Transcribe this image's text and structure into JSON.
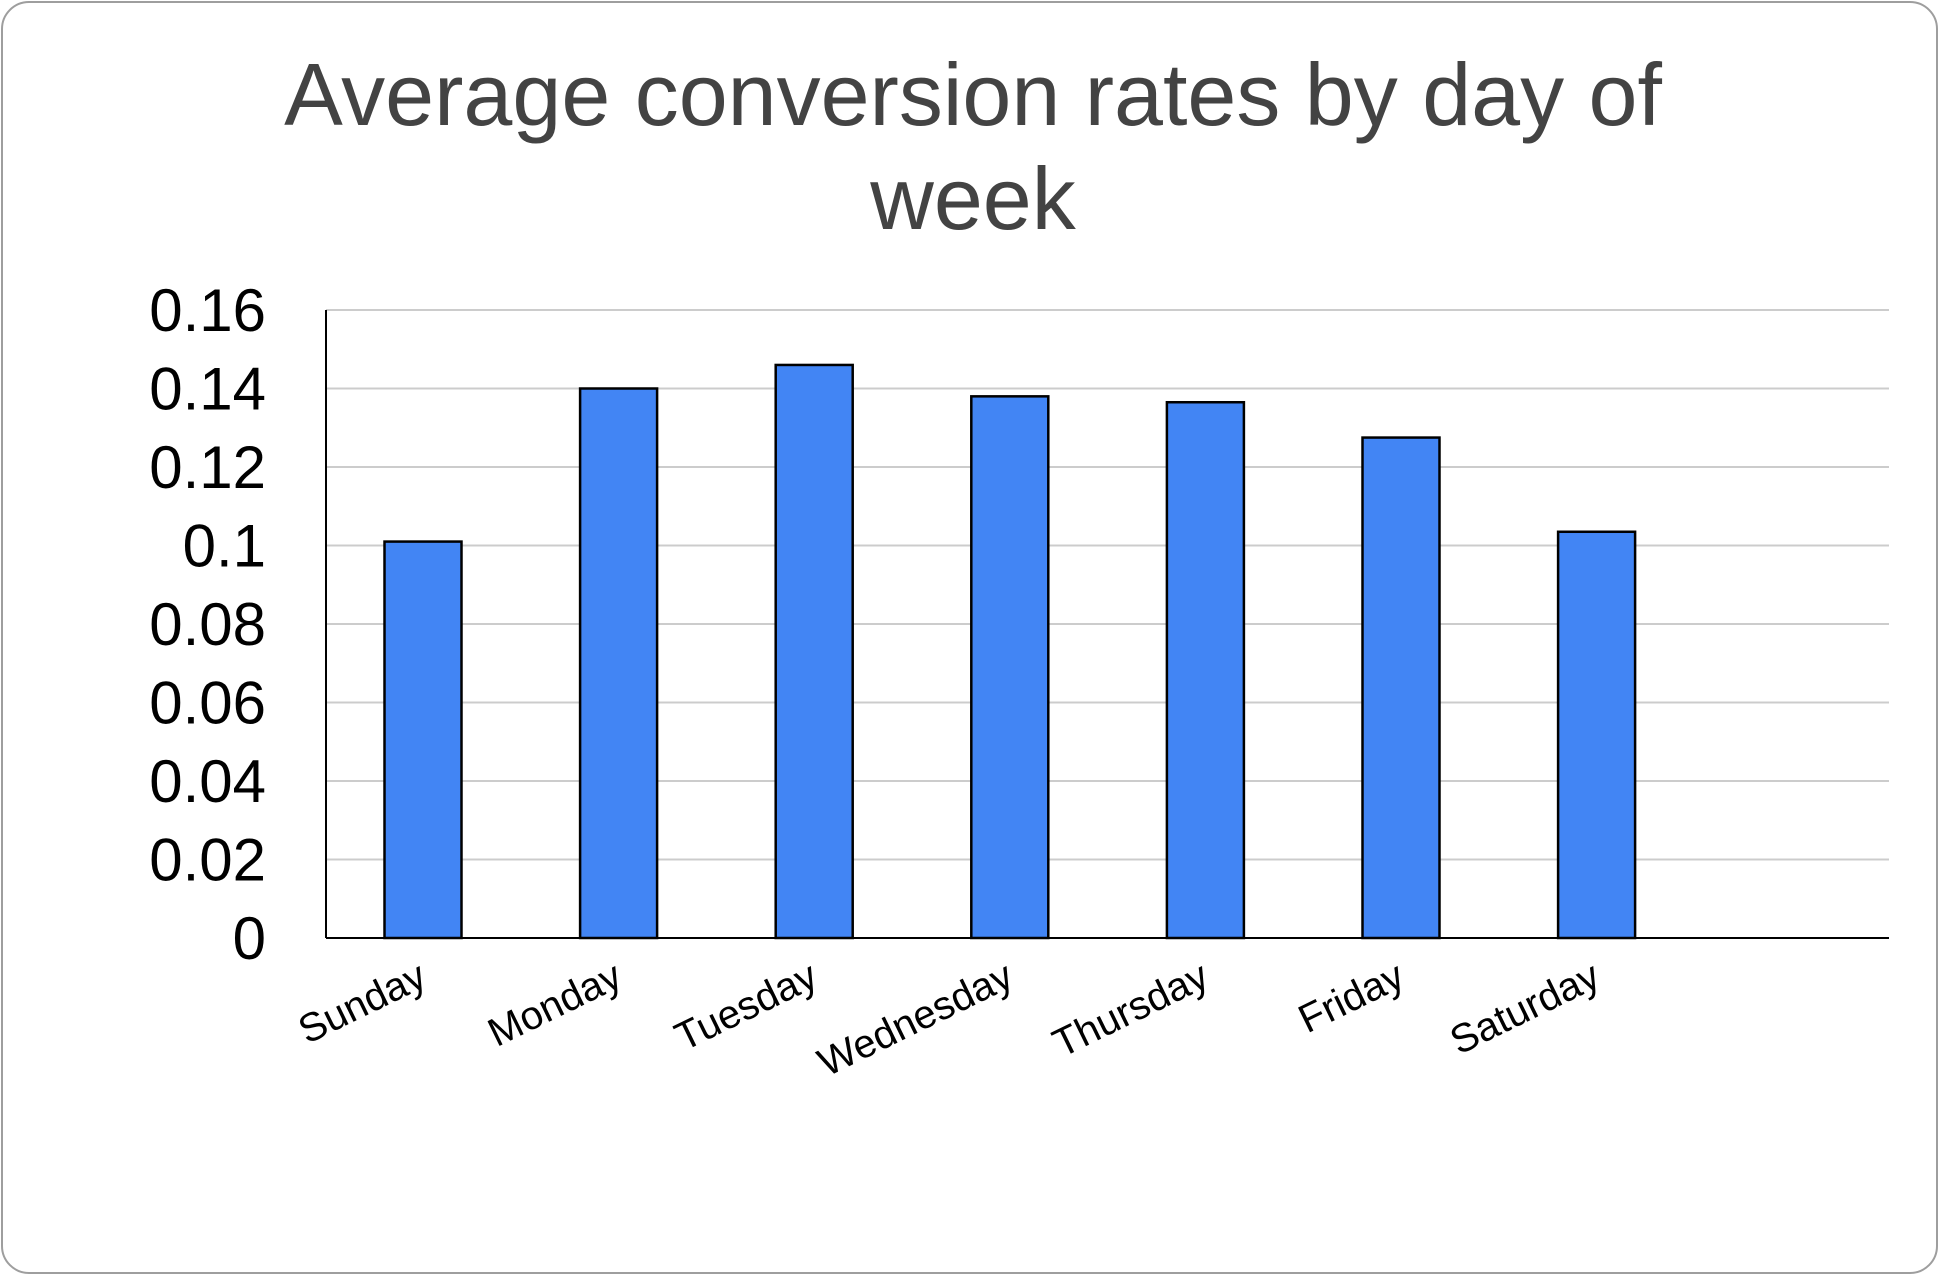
{
  "chart_data": {
    "type": "bar",
    "title": "Average conversion rates by day of week",
    "xlabel": "",
    "ylabel": "",
    "categories": [
      "Sunday",
      "Monday",
      "Tuesday",
      "Wednesday",
      "Thursday",
      "Friday",
      "Saturday"
    ],
    "values": [
      0.101,
      0.14,
      0.146,
      0.138,
      0.1365,
      0.1275,
      0.1035
    ],
    "ylim": [
      0,
      0.16
    ],
    "yticks": [
      "0",
      "0.02",
      "0.04",
      "0.06",
      "0.08",
      "0.1",
      "0.12",
      "0.14",
      "0.16"
    ],
    "grid": true,
    "legend": "none",
    "colors": {
      "bar_fill": "#4285f4",
      "bar_stroke": "#000000",
      "grid": "#cccccc",
      "title": "#434343",
      "frame": "#9e9e9e"
    }
  }
}
